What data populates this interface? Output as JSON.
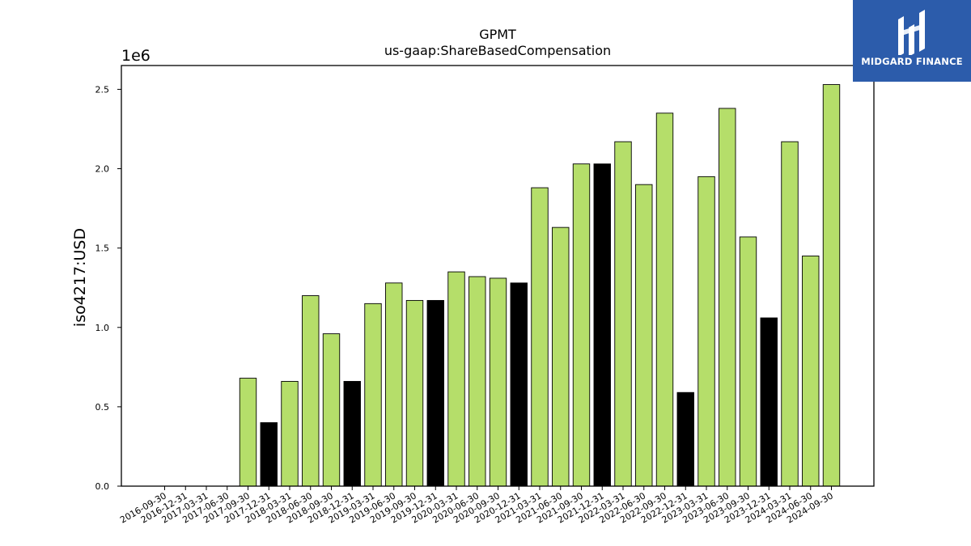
{
  "chart_data": {
    "type": "bar",
    "title": "GPMT",
    "subtitle": "us-gaap:ShareBasedCompensation",
    "xlabel": "",
    "ylabel": "iso4217:USD",
    "y_offset_label": "1e6",
    "ylim": [
      0,
      2650000
    ],
    "yticks": [
      0,
      500000,
      1000000,
      1500000,
      2000000,
      2500000
    ],
    "ytick_labels": [
      "0.0",
      "0.5",
      "1.0",
      "1.5",
      "2.0",
      "2.5"
    ],
    "grid": false,
    "categories": [
      "2016-09-30",
      "2016-12-31",
      "2017-03-31",
      "2017-06-30",
      "2017-09-30",
      "2017-12-31",
      "2018-03-31",
      "2018-06-30",
      "2018-09-30",
      "2018-12-31",
      "2019-03-31",
      "2019-06-30",
      "2019-09-30",
      "2019-12-31",
      "2020-03-31",
      "2020-06-30",
      "2020-09-30",
      "2020-12-31",
      "2021-03-31",
      "2021-06-30",
      "2021-09-30",
      "2021-12-31",
      "2022-03-31",
      "2022-06-30",
      "2022-09-30",
      "2022-12-31",
      "2023-03-31",
      "2023-06-30",
      "2023-09-30",
      "2023-12-31",
      "2024-03-31",
      "2024-06-30",
      "2024-09-30"
    ],
    "values": [
      0,
      0,
      0,
      0,
      680000,
      400000,
      660000,
      1200000,
      960000,
      660000,
      1150000,
      1280000,
      1170000,
      1170000,
      1350000,
      1320000,
      1310000,
      1280000,
      1880000,
      1630000,
      2030000,
      2030000,
      2170000,
      1900000,
      2350000,
      590000,
      1950000,
      2380000,
      1570000,
      1060000,
      2170000,
      1450000,
      2530000
    ],
    "colors": [
      "#b5de6a",
      "#b5de6a",
      "#b5de6a",
      "#b5de6a",
      "#b5de6a",
      "#000000",
      "#b5de6a",
      "#b5de6a",
      "#b5de6a",
      "#000000",
      "#b5de6a",
      "#b5de6a",
      "#b5de6a",
      "#000000",
      "#b5de6a",
      "#b5de6a",
      "#b5de6a",
      "#000000",
      "#b5de6a",
      "#b5de6a",
      "#b5de6a",
      "#000000",
      "#b5de6a",
      "#b5de6a",
      "#b5de6a",
      "#000000",
      "#b5de6a",
      "#b5de6a",
      "#b5de6a",
      "#000000",
      "#b5de6a",
      "#b5de6a",
      "#b5de6a"
    ]
  },
  "logo": {
    "text": "MIDGARD FINANCE",
    "icon": "midgard-finance-logo-icon"
  }
}
